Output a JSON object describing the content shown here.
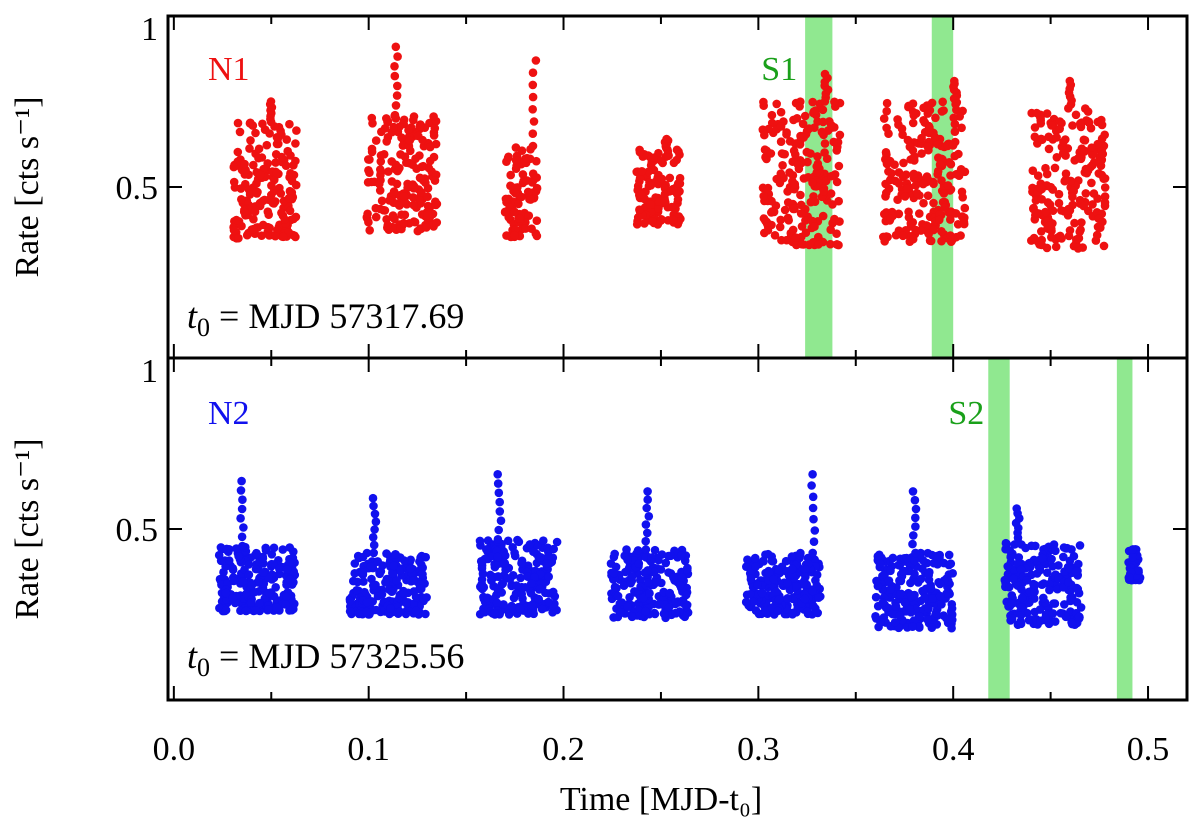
{
  "chart_data": [
    {
      "type": "scatter",
      "panel": "top",
      "series_name": "N1",
      "series_color": "#ee1111",
      "ylabel": "Rate [cts s⁻¹]",
      "ylim": [
        0.0,
        1.0
      ],
      "xlim": [
        -0.003,
        0.52
      ],
      "yticks": [
        0.5,
        1.0
      ],
      "ytick_labels": [
        "0.5",
        "1"
      ],
      "t0_prefix": "t",
      "t0_sub": "0",
      "t0_text": " = MJD 57317.69",
      "annotation": {
        "label": "S1",
        "color": "#1aa01a",
        "x": 0.322
      },
      "shaded_regions": [
        [
          0.324,
          0.338
        ],
        [
          0.389,
          0.4
        ]
      ],
      "shade_color": "#90e890",
      "clusters": [
        {
          "x": [
            0.03,
            0.063
          ],
          "ylo": 0.35,
          "yhi": 0.69,
          "peak_x": 0.05,
          "peak_y": 0.75
        },
        {
          "x": [
            0.099,
            0.135
          ],
          "ylo": 0.37,
          "yhi": 0.71,
          "peak_x": 0.114,
          "peak_y": 0.91
        },
        {
          "x": [
            0.17,
            0.187
          ],
          "ylo": 0.35,
          "yhi": 0.62,
          "peak_x": 0.185,
          "peak_y": 0.87
        },
        {
          "x": [
            0.237,
            0.26
          ],
          "ylo": 0.39,
          "yhi": 0.61,
          "peak_x": 0.253,
          "peak_y": 0.64
        },
        {
          "x": [
            0.302,
            0.342
          ],
          "ylo": 0.33,
          "yhi": 0.75,
          "peak_x": 0.335,
          "peak_y": 0.83
        },
        {
          "x": [
            0.364,
            0.406
          ],
          "ylo": 0.34,
          "yhi": 0.75,
          "peak_x": 0.401,
          "peak_y": 0.81
        },
        {
          "x": [
            0.44,
            0.478
          ],
          "ylo": 0.32,
          "yhi": 0.73,
          "peak_x": 0.46,
          "peak_y": 0.81
        }
      ]
    },
    {
      "type": "scatter",
      "panel": "bottom",
      "series_name": "N2",
      "series_color": "#1111ee",
      "ylabel": "Rate [cts s⁻¹]",
      "ylim": [
        0.0,
        1.0
      ],
      "xlim": [
        -0.003,
        0.52
      ],
      "xlabel": "Time [MJD-t₀]",
      "xticks": [
        0.0,
        0.1,
        0.2,
        0.3,
        0.4,
        0.5
      ],
      "xtick_labels": [
        "0.0",
        "0.1",
        "0.2",
        "0.3",
        "0.4",
        "0.5"
      ],
      "yticks": [
        0.5,
        1.0
      ],
      "ytick_labels": [
        "0.5",
        "1"
      ],
      "t0_prefix": "t",
      "t0_sub": "0",
      "t0_text": " = MJD 57325.56",
      "annotation": {
        "label": "S2",
        "color": "#1aa01a",
        "x": 0.418
      },
      "shaded_regions": [
        [
          0.418,
          0.429
        ],
        [
          0.484,
          0.492
        ]
      ],
      "shade_color": "#90e890",
      "clusters": [
        {
          "x": [
            0.023,
            0.063
          ],
          "ylo": 0.26,
          "yhi": 0.45,
          "peak_x": 0.035,
          "peak_y": 0.64
        },
        {
          "x": [
            0.09,
            0.13
          ],
          "ylo": 0.25,
          "yhi": 0.43,
          "peak_x": 0.103,
          "peak_y": 0.59
        },
        {
          "x": [
            0.157,
            0.197
          ],
          "ylo": 0.25,
          "yhi": 0.47,
          "peak_x": 0.167,
          "peak_y": 0.66
        },
        {
          "x": [
            0.224,
            0.264
          ],
          "ylo": 0.24,
          "yhi": 0.44,
          "peak_x": 0.243,
          "peak_y": 0.61
        },
        {
          "x": [
            0.293,
            0.332
          ],
          "ylo": 0.25,
          "yhi": 0.43,
          "peak_x": 0.328,
          "peak_y": 0.66
        },
        {
          "x": [
            0.36,
            0.4
          ],
          "ylo": 0.21,
          "yhi": 0.43,
          "peak_x": 0.38,
          "peak_y": 0.61
        },
        {
          "x": [
            0.426,
            0.466
          ],
          "ylo": 0.22,
          "yhi": 0.46,
          "peak_x": 0.433,
          "peak_y": 0.56
        },
        {
          "x": [
            0.49,
            0.496
          ],
          "ylo": 0.35,
          "yhi": 0.44,
          "peak_x": 0.493,
          "peak_y": 0.44
        }
      ]
    }
  ]
}
